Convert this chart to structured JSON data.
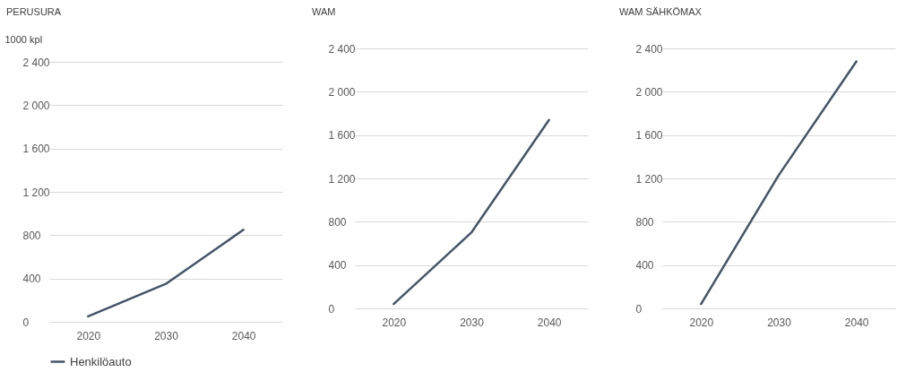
{
  "chart_data": [
    {
      "type": "line",
      "title": "PERUSURA",
      "ylabel": "1000 kpl",
      "categories": [
        "2020",
        "2030",
        "2040"
      ],
      "series": [
        {
          "name": "Henkilöauto",
          "color": "#44546a",
          "values": [
            50,
            350,
            850
          ]
        }
      ],
      "ylim": [
        0,
        2400
      ],
      "yticks": [
        {
          "value": 0,
          "label": "0"
        },
        {
          "value": 400,
          "label": "400"
        },
        {
          "value": 800,
          "label": "800"
        },
        {
          "value": 1200,
          "label": "1 200"
        },
        {
          "value": 1600,
          "label": "1 600"
        },
        {
          "value": 2000,
          "label": "2 000"
        },
        {
          "value": 2400,
          "label": "2 400"
        }
      ],
      "grid": "y",
      "legend": "bottom"
    },
    {
      "type": "line",
      "title": "WAM",
      "categories": [
        "2020",
        "2030",
        "2040"
      ],
      "series": [
        {
          "color": "#44546a",
          "values": [
            40,
            700,
            1740
          ]
        }
      ],
      "ylim": [
        0,
        2400
      ],
      "yticks": [
        {
          "value": 0,
          "label": "0"
        },
        {
          "value": 400,
          "label": "400"
        },
        {
          "value": 800,
          "label": "800"
        },
        {
          "value": 1200,
          "label": "1 200"
        },
        {
          "value": 1600,
          "label": "1 600"
        },
        {
          "value": 2000,
          "label": "2 000"
        },
        {
          "value": 2400,
          "label": "2 400"
        }
      ],
      "grid": "y"
    },
    {
      "type": "line",
      "title": "WAM SÄHKÖMAX",
      "categories": [
        "2020",
        "2030",
        "2040"
      ],
      "series": [
        {
          "color": "#44546a",
          "values": [
            40,
            1230,
            2280
          ]
        }
      ],
      "ylim": [
        0,
        2400
      ],
      "yticks": [
        {
          "value": 0,
          "label": "0"
        },
        {
          "value": 400,
          "label": "400"
        },
        {
          "value": 800,
          "label": "800"
        },
        {
          "value": 1200,
          "label": "1 200"
        },
        {
          "value": 1600,
          "label": "1 600"
        },
        {
          "value": 2000,
          "label": "2 000"
        },
        {
          "value": 2400,
          "label": "2 400"
        }
      ],
      "grid": "y"
    }
  ]
}
